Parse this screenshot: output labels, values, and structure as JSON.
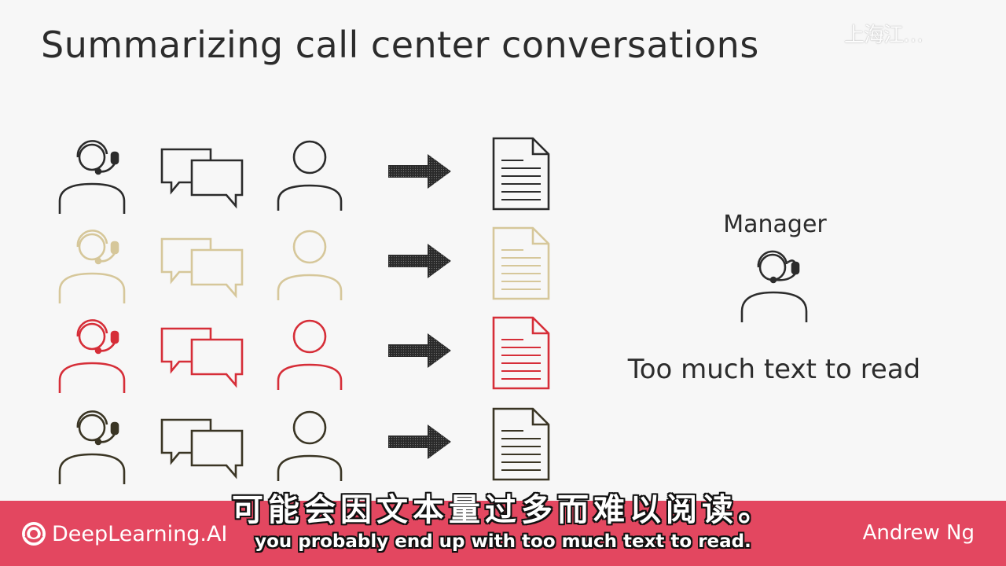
{
  "slide": {
    "title": "Summarizing call center conversations",
    "watermark": "上海江…"
  },
  "rows": [
    {
      "color": "#2b2b2b"
    },
    {
      "color": "#d6c79a"
    },
    {
      "color": "#d62e38"
    },
    {
      "color": "#3a3524"
    }
  ],
  "icons": {
    "agent": "headset-agent-icon",
    "chat": "chat-bubbles-icon",
    "customer": "person-icon",
    "arrow": "right-arrow-icon",
    "document": "document-icon"
  },
  "manager": {
    "label": "Manager",
    "text": "Too much text to read"
  },
  "footer": {
    "brand": "DeepLearning.AI",
    "author": "Andrew Ng",
    "bg_color": "#e34760"
  },
  "subtitles": {
    "zh": "可能会因文本量过多而难以阅读。",
    "en": "you probably end up with too much text to read."
  }
}
